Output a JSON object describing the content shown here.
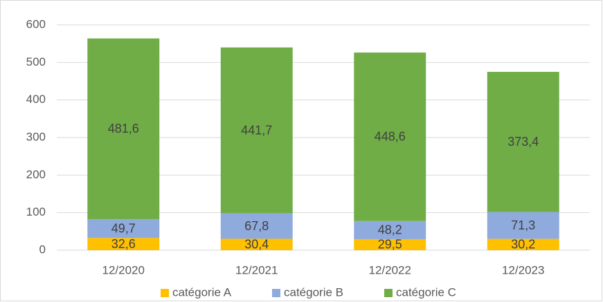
{
  "chart_data": {
    "type": "stacked_bar",
    "categories": [
      "12/2020",
      "12/2021",
      "12/2022",
      "12/2023"
    ],
    "series": [
      {
        "name": "catégorie A",
        "color": "#ffc000",
        "values": [
          32.6,
          30.4,
          29.5,
          30.2
        ],
        "value_labels": [
          "32,6",
          "30,4",
          "29,5",
          "30,2"
        ]
      },
      {
        "name": "catégorie B",
        "color": "#8faadc",
        "values": [
          49.7,
          67.8,
          48.2,
          71.3
        ],
        "value_labels": [
          "49,7",
          "67,8",
          "48,2",
          "71,3"
        ]
      },
      {
        "name": "catégorie C",
        "color": "#70ad47",
        "values": [
          481.6,
          441.7,
          448.6,
          373.4
        ],
        "value_labels": [
          "481,6",
          "441,7",
          "448,6",
          "373,4"
        ]
      }
    ],
    "ylim": [
      0,
      600
    ],
    "yticks": [
      0,
      100,
      200,
      300,
      400,
      500,
      600
    ],
    "grid": true,
    "legend": "bottom"
  }
}
